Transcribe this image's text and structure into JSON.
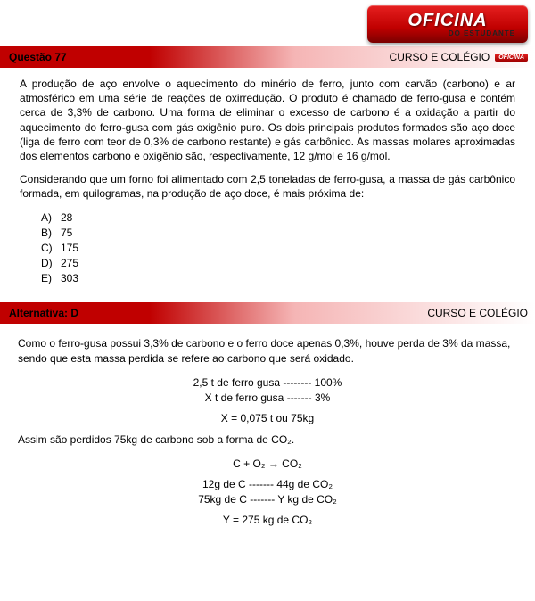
{
  "logo": {
    "main": "OFICINA",
    "sub": "DO ESTUDANTE"
  },
  "question_bar": {
    "left": "Questão  77",
    "right": "CURSO E COLÉGIO",
    "mini": "OFICINA"
  },
  "question": {
    "para1": "A produção de aço envolve o aquecimento do minério de ferro, junto com carvão (carbono) e ar atmosférico em uma série de reações de oxirredução. O produto é chamado de ferro-gusa e contém cerca de 3,3% de carbono. Uma forma de eliminar o excesso de carbono é a oxidação a partir do aquecimento do ferro-gusa com gás oxigênio puro. Os dois principais produtos formados são aço doce (liga de ferro com teor de 0,3% de carbono restante) e gás carbônico. As massas molares aproximadas dos elementos carbono e oxigênio são, respectivamente, 12 g/mol e 16 g/mol.",
    "para2": "Considerando que um forno foi alimentado com 2,5 toneladas de ferro-gusa, a massa de gás carbônico formada, em quilogramas, na produção de aço doce, é mais próxima de:",
    "options": [
      {
        "letter": "A)",
        "text": "28"
      },
      {
        "letter": "B)",
        "text": "75"
      },
      {
        "letter": "C)",
        "text": "175"
      },
      {
        "letter": "D)",
        "text": "275"
      },
      {
        "letter": "E)",
        "text": "303"
      }
    ]
  },
  "answer_bar": {
    "left": "Alternativa: D",
    "right": "CURSO E COLÉGIO"
  },
  "answer": {
    "para1": "Como o ferro-gusa possui 3,3% de carbono e o ferro doce apenas 0,3%, houve perda de 3% da massa, sendo que esta massa perdida se refere ao carbono que será oxidado.",
    "calc1a": "2,5 t de ferro gusa -------- 100%",
    "calc1b": "X t de ferro gusa ------- 3%",
    "calc2": "X = 0,075 t ou 75kg",
    "para2": "Assim são perdidos 75kg de carbono sob a forma de CO₂.",
    "eq": "C + O₂ → CO₂",
    "calc3a": "12g de C ------- 44g de CO₂",
    "calc3b": "75kg de C ------- Y kg de CO₂",
    "result": "Y = 275 kg de CO₂"
  },
  "colors": {
    "bar_red": "#c00000",
    "bar_fade": "#ffffff",
    "text": "#000000",
    "background": "#ffffff"
  }
}
